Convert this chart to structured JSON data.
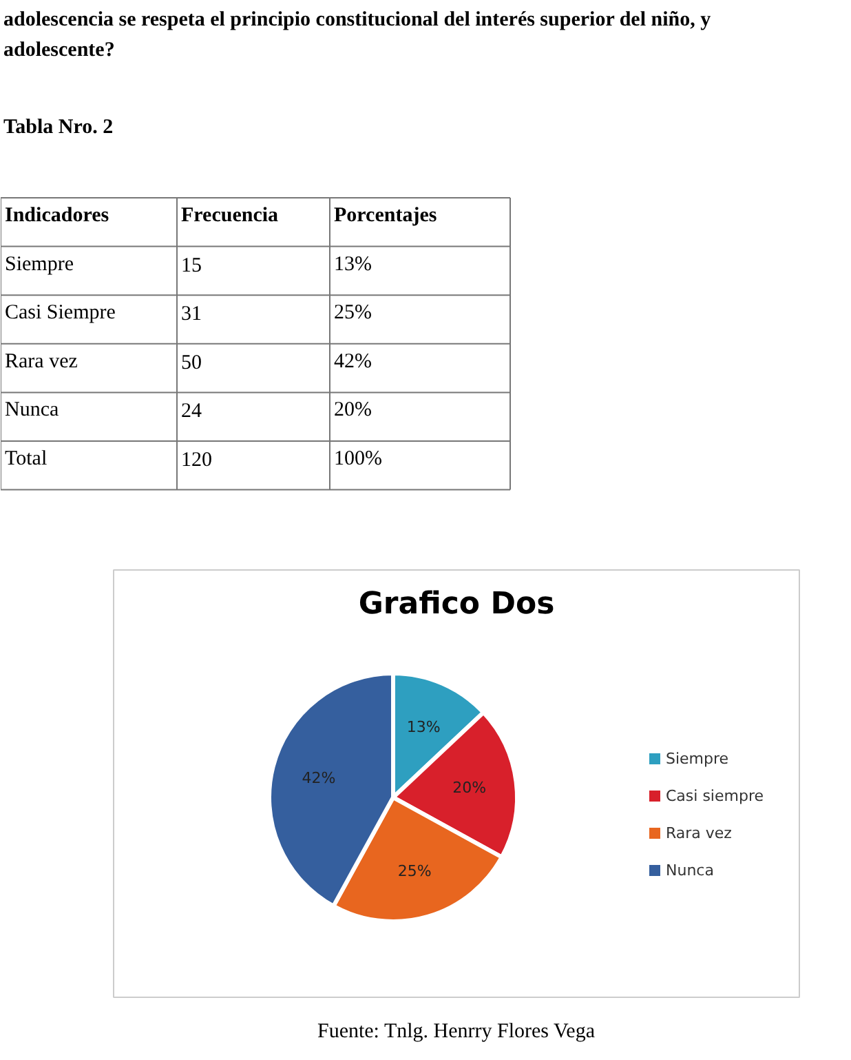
{
  "chart_data": [
    {
      "type": "other",
      "subtitle": "adolescencia se respeta el principio constitucional del interés superior del niño, y adolescente?",
      "title": "Tabla Nro. 2",
      "annotations": [
        "Indicadores",
        "Frecuencia",
        "Porcentajes",
        "Siempre",
        "15",
        "13%",
        "Casi Siempre",
        "31",
        "25%",
        "Rara vez",
        "50",
        "42%",
        "Nunca",
        "24",
        "20%",
        "Total",
        "120",
        "100%"
      ]
    },
    {
      "type": "pie",
      "title": "Grafico Dos",
      "categories": [
        "Siempre",
        "Casi siempre",
        "Rara vez",
        "Nunca"
      ],
      "values": [
        13,
        20,
        25,
        42
      ],
      "colors": [
        "#2e9fc0",
        "#d8202b",
        "#e8661f",
        "#355f9e"
      ],
      "value_labels": [
        "13%",
        "20%",
        "25%",
        "42%"
      ],
      "legend": "right",
      "annotations": [
        "Fuente: Tnlg. Henrry Flores Vega"
      ]
    }
  ]
}
